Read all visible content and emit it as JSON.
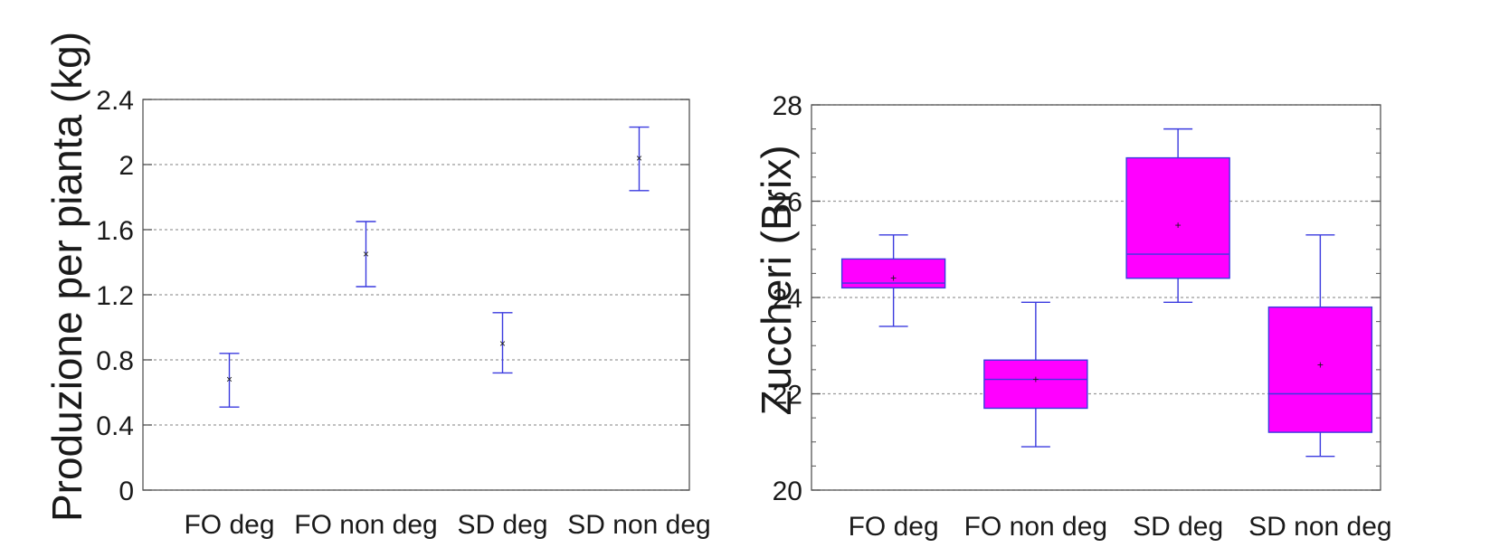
{
  "chart_data": [
    {
      "type": "scatter",
      "subtype": "mean-with-error-bars",
      "ylabel": "Produzione per pianta (kg)",
      "categories": [
        "FO  deg",
        "FO  non deg",
        "SD  deg",
        "SD  non deg"
      ],
      "ylim": [
        0,
        2.4
      ],
      "yticks": [
        0,
        0.4,
        0.8,
        1.2,
        1.6,
        2,
        2.4
      ],
      "ytick_labels": [
        "0",
        "0.4",
        "0.8",
        "1.2",
        "1.6",
        "2",
        "2.4"
      ],
      "grid": true,
      "means": [
        0.68,
        1.45,
        0.9,
        2.04
      ],
      "upper": [
        0.84,
        1.65,
        1.09,
        2.23
      ],
      "lower": [
        0.51,
        1.25,
        0.72,
        1.84
      ],
      "colors": {
        "bar": "#3a3adf",
        "marker": "#b0006a",
        "grid": "#9a9a9a",
        "axis": "#555555"
      }
    },
    {
      "type": "box",
      "ylabel": "Zuccheri (Brix)",
      "categories": [
        "FO  deg",
        "FO  non deg",
        "SD  deg",
        "SD  non deg"
      ],
      "ylim": [
        20,
        28
      ],
      "yticks": [
        20,
        22,
        24,
        26,
        28
      ],
      "ytick_labels": [
        "20",
        "22",
        "24",
        "26",
        "28"
      ],
      "grid": true,
      "boxes": [
        {
          "min": 23.4,
          "q1": 24.2,
          "median": 24.3,
          "q3": 24.8,
          "max": 25.3,
          "mean": 24.4
        },
        {
          "min": 20.9,
          "q1": 21.7,
          "median": 22.3,
          "q3": 22.7,
          "max": 23.9,
          "mean": 22.3
        },
        {
          "min": 23.9,
          "q1": 24.4,
          "median": 24.9,
          "q3": 26.9,
          "max": 27.5,
          "mean": 25.5
        },
        {
          "min": 20.7,
          "q1": 21.2,
          "median": 22.0,
          "q3": 23.8,
          "max": 25.3,
          "mean": 22.6
        }
      ],
      "colors": {
        "fill": "#ff00ff",
        "line": "#3a3adf",
        "mean": "#ff2a6a",
        "grid": "#9a9a9a",
        "axis": "#555555"
      }
    }
  ]
}
